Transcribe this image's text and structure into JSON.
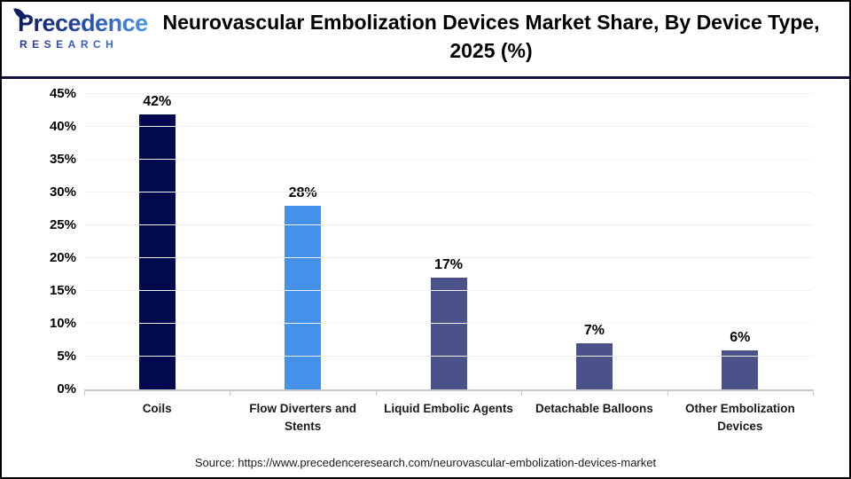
{
  "logo": {
    "name": "Precedence",
    "subname": "RESEARCH"
  },
  "header": {
    "title": "Neurovascular Embolization Devices Market Share, By Device Type, 2025 (%)"
  },
  "source": {
    "text": "Source: https://www.precedenceresearch.com/neurovascular-embolization-devices-market"
  },
  "colors": {
    "header_divider": "#12123d",
    "axis_line": "#c8c8c8",
    "gridline": "#f1f1f4"
  },
  "chart_data": {
    "type": "bar",
    "title": "Neurovascular Embolization Devices Market Share, By Device Type, 2025 (%)",
    "categories": [
      "Coils",
      "Flow Diverters and Stents",
      "Liquid Embolic Agents",
      "Detachable Balloons",
      "Other Embolization Devices"
    ],
    "values": [
      42,
      28,
      17,
      7,
      6
    ],
    "value_labels": [
      "42%",
      "28%",
      "17%",
      "7%",
      "6%"
    ],
    "bar_colors": [
      "#010a4e",
      "#4590e8",
      "#4b5189",
      "#4b5189",
      "#4b5189"
    ],
    "xlabel": "",
    "ylabel": "",
    "ylim": [
      0,
      45
    ],
    "ytick_step": 5,
    "ytick_labels": [
      "0%",
      "5%",
      "10%",
      "15%",
      "20%",
      "25%",
      "30%",
      "35%",
      "40%",
      "45%"
    ],
    "grid": true,
    "legend": false
  }
}
